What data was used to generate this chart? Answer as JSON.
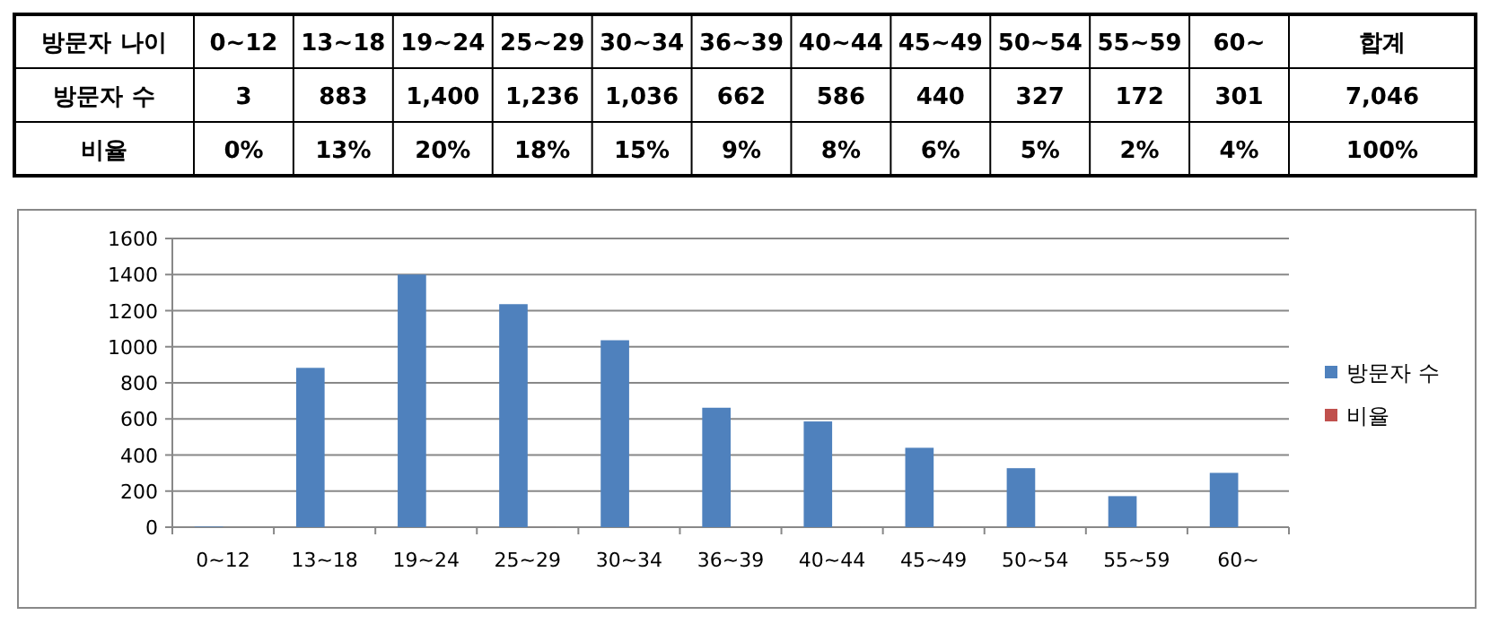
{
  "chart_data": {
    "type": "bar",
    "categories": [
      "0~12",
      "13~18",
      "19~24",
      "25~29",
      "30~34",
      "36~39",
      "40~44",
      "45~49",
      "50~54",
      "55~59",
      "60~"
    ],
    "series": [
      {
        "name": "방문자 수",
        "color": "#4f81bd",
        "values": [
          3,
          883,
          1400,
          1236,
          1036,
          662,
          586,
          440,
          327,
          172,
          301
        ],
        "value_labels": [
          "3",
          "883",
          "1,400",
          "1,236",
          "1,036",
          "662",
          "586",
          "440",
          "327",
          "172",
          "301"
        ]
      },
      {
        "name": "비율",
        "color": "#c0504d",
        "values": [
          0.0004,
          0.13,
          0.2,
          0.18,
          0.15,
          0.09,
          0.08,
          0.06,
          0.05,
          0.02,
          0.04
        ],
        "value_labels": [
          "0%",
          "13%",
          "20%",
          "18%",
          "15%",
          "9%",
          "8%",
          "6%",
          "5%",
          "2%",
          "4%"
        ]
      }
    ],
    "annotations": [
      "방문자 나이",
      "합계",
      "7,046",
      "100%"
    ],
    "ylim": [
      0,
      1600
    ],
    "yticks": [
      0,
      200,
      400,
      600,
      800,
      1000,
      1200,
      1400,
      1600
    ],
    "grid": "y",
    "legend": "right"
  }
}
